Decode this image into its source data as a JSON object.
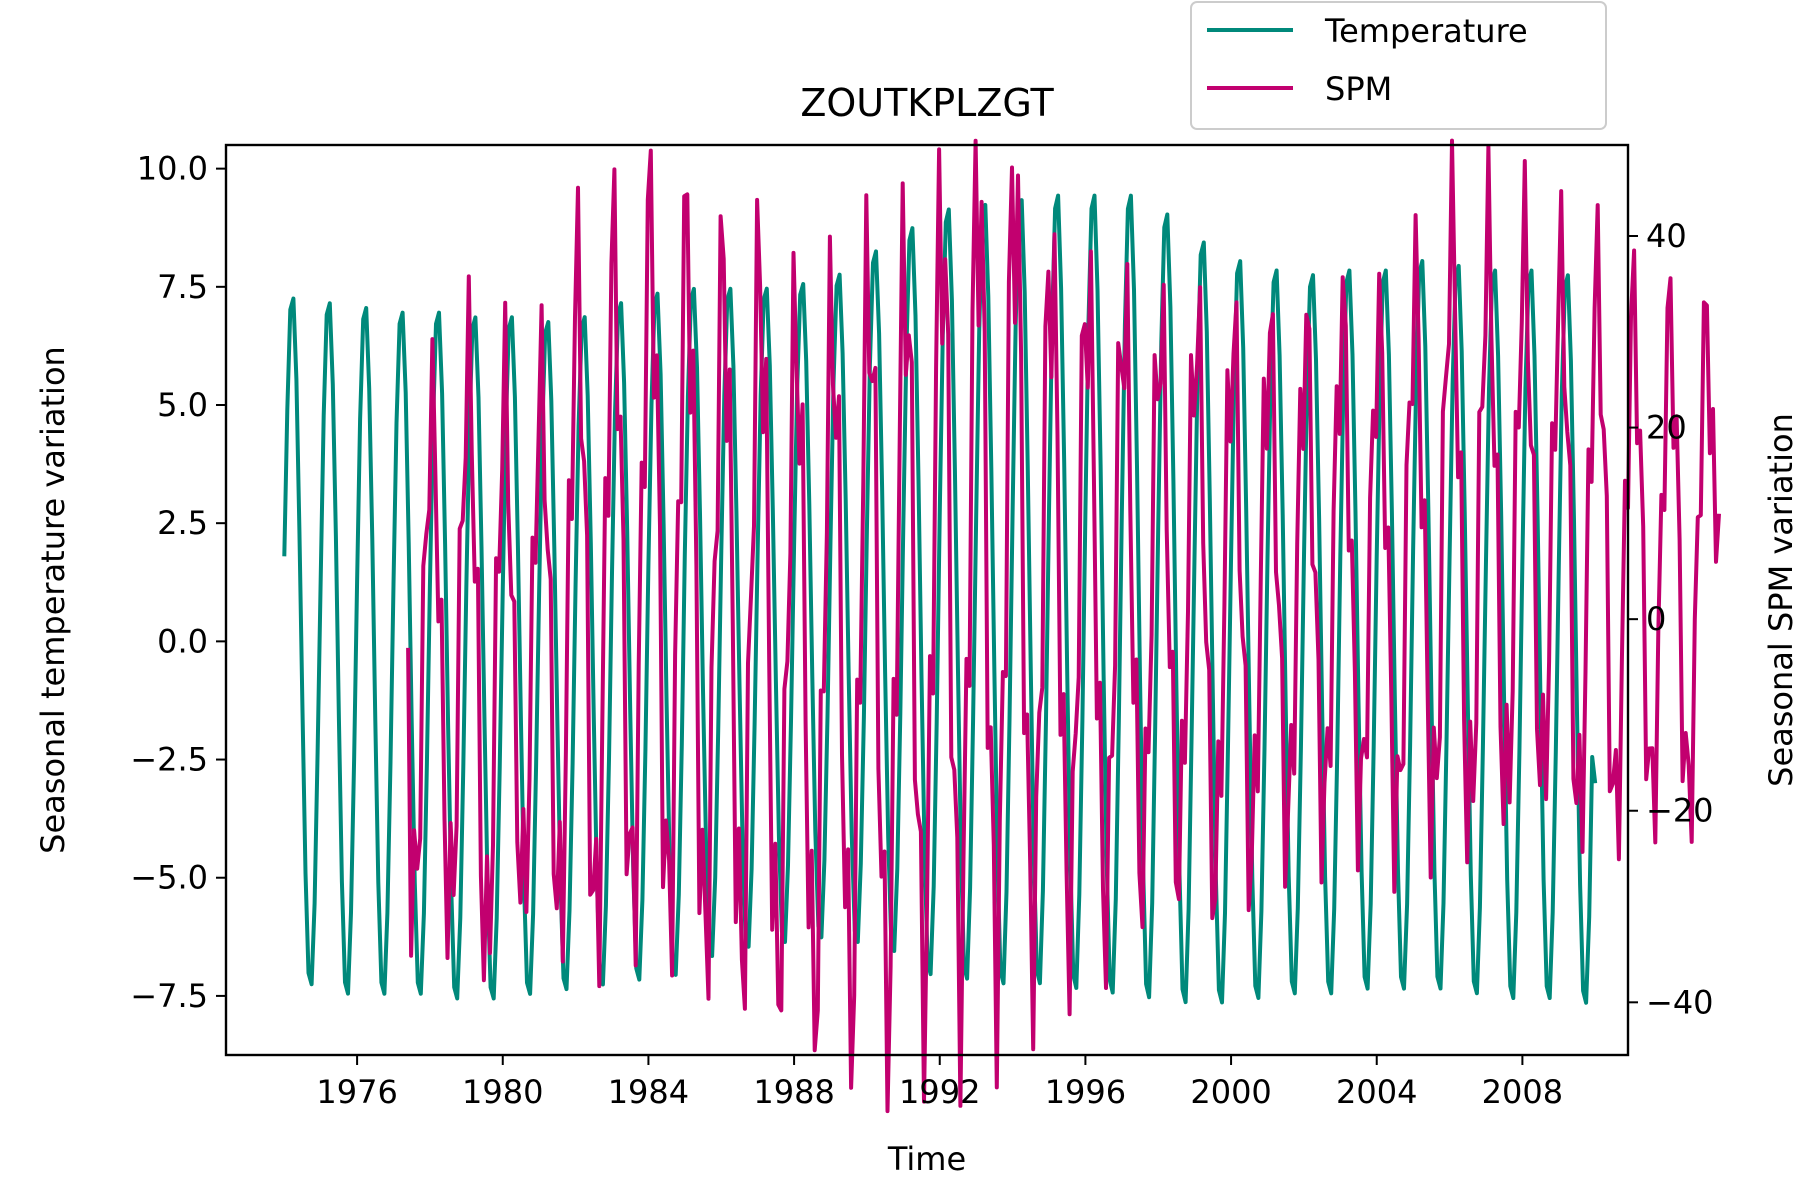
{
  "chart_data": {
    "type": "line",
    "title": "ZOUTKPLZGT",
    "xlabel": "Time",
    "ylabel_left": "Seasonal temperature variation",
    "ylabel_right": "Seasonal SPM variation",
    "xlim": [
      1972.4,
      2010.9
    ],
    "ylim_left": [
      -8.75,
      10.5
    ],
    "ylim_right": [
      -45.5,
      49.5
    ],
    "x_ticks": [
      1976,
      1980,
      1984,
      1988,
      1992,
      1996,
      2000,
      2004,
      2008
    ],
    "y_left_ticks": [
      "10.0",
      "7.5",
      "5.0",
      "2.5",
      "0.0",
      "−2.5",
      "−5.0",
      "−7.5"
    ],
    "y_left_tick_values": [
      10.0,
      7.5,
      5.0,
      2.5,
      0.0,
      -2.5,
      -5.0,
      -7.5
    ],
    "y_right_ticks": [
      "40",
      "20",
      "0",
      "−20",
      "−40"
    ],
    "y_right_tick_values": [
      40,
      20,
      0,
      -20,
      -40
    ],
    "legend": {
      "placement": "above top-right",
      "entries": [
        {
          "label": "Temperature",
          "color": "#00897b"
        },
        {
          "label": "SPM",
          "color": "#c2006f"
        }
      ]
    },
    "series": [
      {
        "name": "Temperature",
        "axis": "left",
        "color": "#00897b",
        "x_start": 1974.0,
        "x_step_months": 1,
        "annual_peaks": [
          7.4,
          7.3,
          7.2,
          7.1,
          7.1,
          7.0,
          7.0,
          6.9,
          7.0,
          7.3,
          7.5,
          7.6,
          7.6,
          7.6,
          7.7,
          7.9,
          8.4,
          8.9,
          9.3,
          9.4,
          9.5,
          9.6,
          9.6,
          9.6,
          9.2,
          8.6,
          8.2,
          8.0,
          7.9,
          8.0,
          8.0,
          8.2,
          8.1,
          8.0,
          8.0,
          7.9
        ],
        "annual_troughs": [
          -7.4,
          -7.6,
          -7.6,
          -7.6,
          -7.7,
          -7.7,
          -7.6,
          -7.5,
          -7.4,
          -7.3,
          -7.2,
          -6.8,
          -6.6,
          -6.5,
          -6.4,
          -6.5,
          -6.7,
          -7.2,
          -7.3,
          -7.4,
          -7.4,
          -7.5,
          -7.6,
          -7.7,
          -7.8,
          -7.8,
          -7.7,
          -7.6,
          -7.6,
          -7.5,
          -7.5,
          -7.5,
          -7.6,
          -7.7,
          -7.7,
          -7.8
        ],
        "start_value": 1.8,
        "end_value": -3.0
      },
      {
        "name": "SPM",
        "axis": "right",
        "color": "#c2006f",
        "x_start": 1977.4,
        "x_step_months": 1,
        "annual_peaks": [
          21,
          26,
          23,
          24,
          35,
          38,
          42,
          40,
          36,
          36,
          30,
          31,
          35,
          37,
          42,
          45,
          45,
          37,
          34,
          32,
          30,
          30,
          29,
          29,
          29,
          31,
          30,
          34,
          40,
          39,
          38,
          36,
          35,
          32,
          31,
          30
        ],
        "annual_troughs": [
          -30,
          -31,
          -35,
          -29,
          -32,
          -33,
          -30,
          -31,
          -34,
          -36,
          -38,
          -40,
          -41,
          -41,
          -38,
          -37,
          -35,
          -33,
          -31,
          -30,
          -26,
          -25,
          -27,
          -25,
          -22,
          -21,
          -20,
          -22,
          -21,
          -21,
          -19,
          -17,
          -21,
          -21,
          -19,
          -19
        ],
        "start_value": -3,
        "end_value": 11
      }
    ]
  }
}
